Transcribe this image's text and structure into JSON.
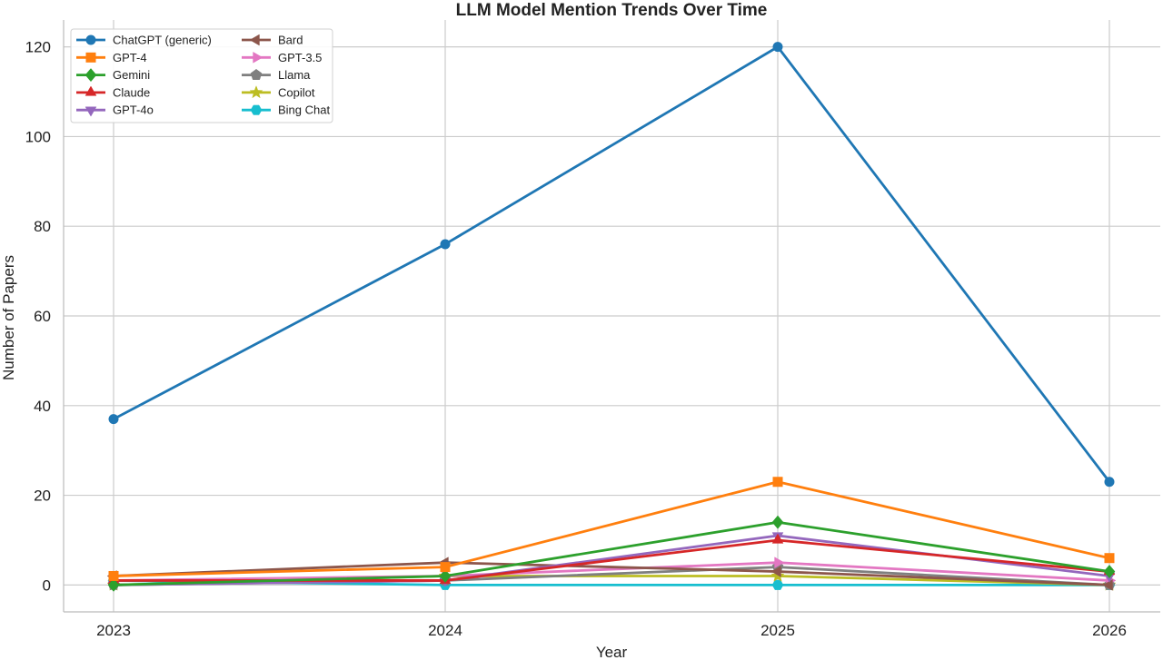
{
  "chart_data": {
    "type": "line",
    "title": "LLM Model Mention Trends Over Time",
    "xlabel": "Year",
    "ylabel": "Number of Papers",
    "x": [
      "2023",
      "2024",
      "2025",
      "2026"
    ],
    "yticks": [
      0,
      20,
      40,
      60,
      80,
      100,
      120
    ],
    "ylim": [
      -6,
      126
    ],
    "grid": true,
    "legend_position": "top-left",
    "series": [
      {
        "name": "ChatGPT (generic)",
        "values": [
          37,
          76,
          120,
          23
        ],
        "color": "#1f77b4",
        "marker": "circle"
      },
      {
        "name": "GPT-4",
        "values": [
          2,
          4,
          23,
          6
        ],
        "color": "#ff7f0e",
        "marker": "square"
      },
      {
        "name": "Gemini",
        "values": [
          0,
          2,
          14,
          3
        ],
        "color": "#2ca02c",
        "marker": "diamond"
      },
      {
        "name": "Claude",
        "values": [
          1,
          1,
          10,
          3
        ],
        "color": "#d62728",
        "marker": "triangle-up"
      },
      {
        "name": "GPT-4o",
        "values": [
          0,
          1,
          11,
          2
        ],
        "color": "#9467bd",
        "marker": "triangle-down"
      },
      {
        "name": "Bard",
        "values": [
          2,
          5,
          3,
          0
        ],
        "color": "#8c564b",
        "marker": "triangle-left"
      },
      {
        "name": "GPT-3.5",
        "values": [
          1,
          2,
          5,
          1
        ],
        "color": "#e377c2",
        "marker": "triangle-right"
      },
      {
        "name": "Llama",
        "values": [
          0,
          1,
          4,
          0
        ],
        "color": "#7f7f7f",
        "marker": "pentagon"
      },
      {
        "name": "Copilot",
        "values": [
          0,
          2,
          2,
          0
        ],
        "color": "#bcbd22",
        "marker": "star"
      },
      {
        "name": "Bing Chat",
        "values": [
          1,
          0,
          0,
          0
        ],
        "color": "#17becf",
        "marker": "hexagon"
      }
    ]
  }
}
